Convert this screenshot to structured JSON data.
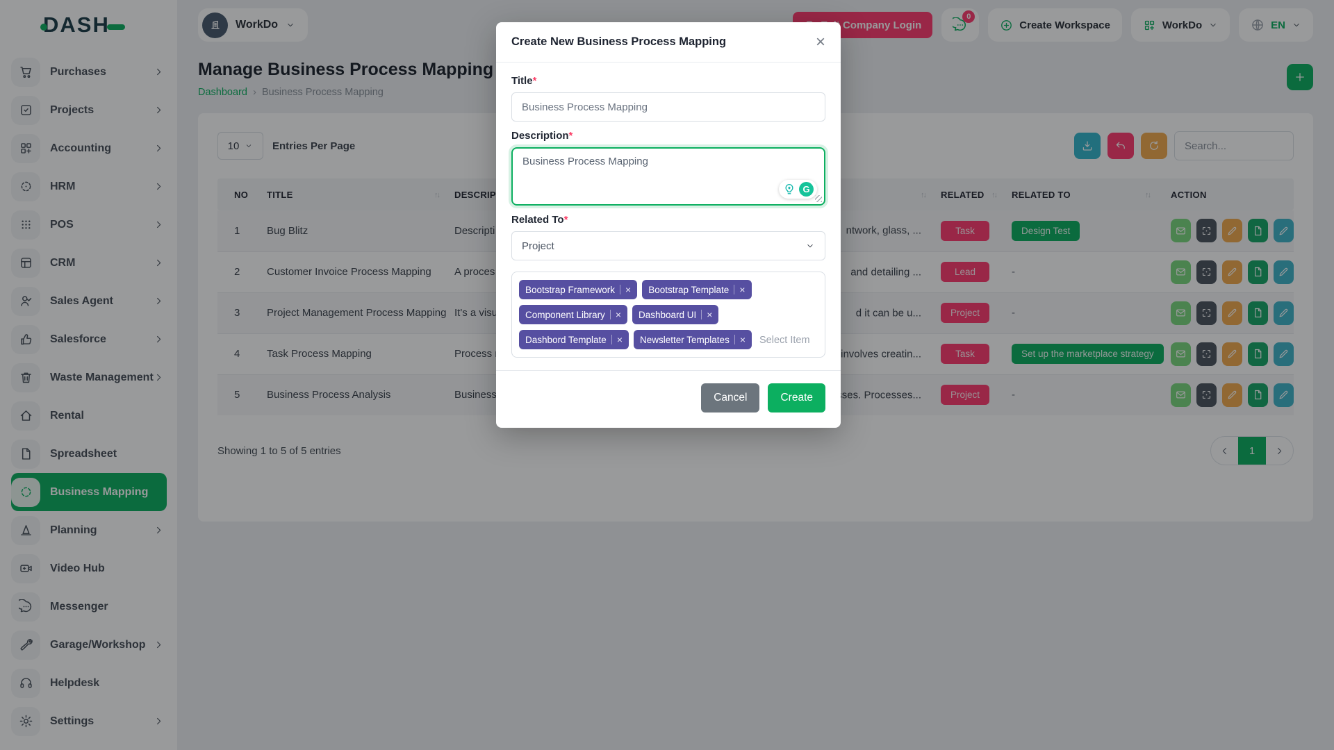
{
  "brand": {
    "logo_text": "DASH"
  },
  "workspace": {
    "name": "WorkDo",
    "avatar_icon": "building-icon"
  },
  "header": {
    "exit_button_label": "Exit Company Login",
    "chat_badge_count": "0",
    "create_workspace_label": "Create Workspace",
    "workspace_menu_label": "WorkDo",
    "language_code": "EN"
  },
  "sidebar": {
    "items": [
      {
        "id": "purchases",
        "label": "Purchases",
        "icon": "cart-icon",
        "has_children": true,
        "active": false
      },
      {
        "id": "projects",
        "label": "Projects",
        "icon": "task-square-icon",
        "has_children": true,
        "active": false
      },
      {
        "id": "accounting",
        "label": "Accounting",
        "icon": "accounting-grid-icon",
        "has_children": true,
        "active": false
      },
      {
        "id": "hrm",
        "label": "HRM",
        "icon": "hrm-target-icon",
        "has_children": true,
        "active": false
      },
      {
        "id": "pos",
        "label": "POS",
        "icon": "pos-dots-icon",
        "has_children": true,
        "active": false
      },
      {
        "id": "crm",
        "label": "CRM",
        "icon": "crm-layout-icon",
        "has_children": true,
        "active": false
      },
      {
        "id": "sales-agent",
        "label": "Sales Agent",
        "icon": "person-check-icon",
        "has_children": true,
        "active": false
      },
      {
        "id": "salesforce",
        "label": "Salesforce",
        "icon": "thumbs-up-icon",
        "has_children": true,
        "active": false
      },
      {
        "id": "waste-management",
        "label": "Waste Management",
        "icon": "trash-icon",
        "has_children": true,
        "active": false
      },
      {
        "id": "rental",
        "label": "Rental",
        "icon": "home-icon",
        "has_children": false,
        "active": false
      },
      {
        "id": "spreadsheet",
        "label": "Spreadsheet",
        "icon": "file-icon",
        "has_children": false,
        "active": false
      },
      {
        "id": "business-mapping",
        "label": "Business Mapping",
        "icon": "dashed-circle-icon",
        "has_children": false,
        "active": true
      },
      {
        "id": "planning",
        "label": "Planning",
        "icon": "cone-icon",
        "has_children": true,
        "active": false
      },
      {
        "id": "video-hub",
        "label": "Video Hub",
        "icon": "video-camera-icon",
        "has_children": false,
        "active": false
      },
      {
        "id": "messenger",
        "label": "Messenger",
        "icon": "chat-bubble-icon",
        "has_children": false,
        "active": false
      },
      {
        "id": "garage-workshop",
        "label": "Garage/Workshop",
        "icon": "wrench-icon",
        "has_children": true,
        "active": false
      },
      {
        "id": "helpdesk",
        "label": "Helpdesk",
        "icon": "headphones-icon",
        "has_children": false,
        "active": false
      },
      {
        "id": "settings",
        "label": "Settings",
        "icon": "gear-icon",
        "has_children": true,
        "active": false
      }
    ]
  },
  "page": {
    "title": "Manage Business Process Mapping",
    "breadcrumb_home": "Dashboard",
    "breadcrumb_current": "Business Process Mapping"
  },
  "toolbar": {
    "entries_value": "10",
    "entries_label": "Entries Per Page",
    "search_placeholder": "Search..."
  },
  "table": {
    "columns": [
      {
        "label": "NO",
        "sortable": false
      },
      {
        "label": "TITLE",
        "sortable": true
      },
      {
        "label": "DESCRIPTION",
        "sortable": true
      },
      {
        "label": "RELATED",
        "sortable": true
      },
      {
        "label": "RELATED TO",
        "sortable": true
      },
      {
        "label": "ACTION",
        "sortable": false
      }
    ],
    "rows": [
      {
        "no": "1",
        "title": "Bug Blitz",
        "desc_start": "Descripti",
        "desc_end": "ntwork, glass, ...",
        "related": "Task",
        "related_to": "Design Test"
      },
      {
        "no": "2",
        "title": "Customer Invoice Process Mapping",
        "desc_start": "A proces",
        "desc_end": "and detailing ...",
        "related": "Lead",
        "related_to": "-"
      },
      {
        "no": "3",
        "title": "Project Management Process Mapping",
        "desc_start": "It's a visu",
        "desc_end": "d it can be u...",
        "related": "Project",
        "related_to": "-"
      },
      {
        "no": "4",
        "title": "Task Process Mapping",
        "desc_start": "Process r",
        "desc_end": "involves creatin...",
        "related": "Task",
        "related_to": "Set up the marketplace strategy"
      },
      {
        "no": "5",
        "title": "Business Process Analysis",
        "desc_start": "Business",
        "desc_end": "esses. Processes...",
        "related": "Project",
        "related_to": "-"
      }
    ],
    "action_buttons": [
      {
        "name": "mail-button",
        "icon": "mail-icon",
        "color": "#79d87d"
      },
      {
        "name": "grid-view-button",
        "icon": "scan-icon",
        "color": "#4a545e"
      },
      {
        "name": "edit-button",
        "icon": "pencil-icon",
        "color": "#f2a94c"
      },
      {
        "name": "document-button",
        "icon": "file-icon",
        "color": "#16a566"
      },
      {
        "name": "edit-alt-button",
        "icon": "pencil-icon",
        "color": "#3fb3c9"
      }
    ]
  },
  "footer": {
    "showing_text": "Showing 1 to 5 of 5 entries",
    "page_number": "1",
    "prev_icon": "chevron-left-icon",
    "next_icon": "chevron-right-icon"
  },
  "modal": {
    "title": "Create New Business Process Mapping",
    "title_label": "Title",
    "title_value": "Business Process Mapping",
    "description_label": "Description",
    "description_value": "Business Process Mapping",
    "related_to_label": "Related To",
    "related_to_value": "Project",
    "tags": [
      "Bootstrap Framework",
      "Bootstrap Template",
      "Component Library",
      "Dashboard UI",
      "Dashbord Template",
      "Newsletter Templates"
    ],
    "select_item_placeholder": "Select Item",
    "cancel_label": "Cancel",
    "create_label": "Create",
    "grammarly_letter": "G"
  },
  "colors": {
    "primary_green": "#0caf60",
    "danger_red": "#ff3a6e",
    "tag_purple": "#564fa1",
    "grammarly_teal": "#15c39a",
    "cancel_gray": "#6c757d"
  }
}
